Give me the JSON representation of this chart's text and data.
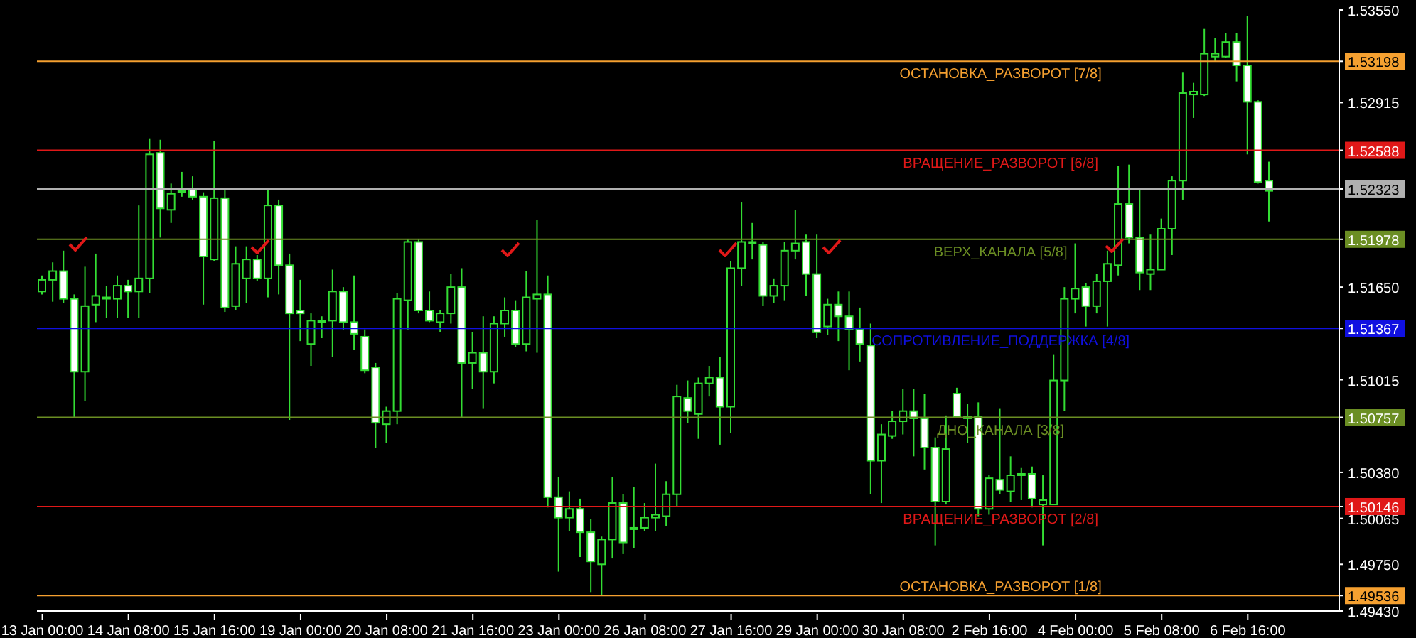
{
  "chart_data": {
    "type": "candlestick",
    "color": "#33dd33",
    "categories": [
      "13 Jan 00:00",
      null,
      null,
      null,
      null,
      null,
      null,
      null,
      "14 Jan 08:00",
      null,
      null,
      null,
      null,
      null,
      null,
      null,
      "15 Jan 16:00",
      null,
      null,
      null,
      null,
      null,
      null,
      null,
      "19 Jan 00:00",
      null,
      null,
      null,
      null,
      null,
      null,
      null,
      "20 Jan 08:00",
      null,
      null,
      null,
      null,
      null,
      null,
      null,
      "21 Jan 16:00",
      null,
      null,
      null,
      null,
      null,
      null,
      null,
      "23 Jan 00:00",
      null,
      null,
      null,
      null,
      null,
      null,
      null,
      "26 Jan 08:00",
      null,
      null,
      null,
      null,
      null,
      null,
      null,
      "27 Jan 16:00",
      null,
      null,
      null,
      null,
      null,
      null,
      null,
      "29 Jan 00:00",
      null,
      null,
      null,
      null,
      null,
      null,
      null,
      "30 Jan 08:00",
      null,
      null,
      null,
      null,
      null,
      null,
      null,
      "2 Feb 16:00",
      null,
      null,
      null,
      null,
      null,
      null,
      null,
      "4 Feb 00:00",
      null,
      null,
      null,
      null,
      null,
      null,
      null,
      "5 Feb 08:00",
      null,
      null,
      null,
      null,
      null,
      null,
      null,
      "6 Feb 16:00",
      null,
      null
    ],
    "ohlc": [
      [
        1.5162,
        1.5173,
        1.516,
        1.517
      ],
      [
        1.517,
        1.5182,
        1.5155,
        1.5176
      ],
      [
        1.5176,
        1.519,
        1.5154,
        1.5157
      ],
      [
        1.5157,
        1.516,
        1.5076,
        1.5107
      ],
      [
        1.5107,
        1.5179,
        1.5087,
        1.5152
      ],
      [
        1.5153,
        1.5188,
        1.5141,
        1.5159
      ],
      [
        1.5158,
        1.5166,
        1.5144,
        1.5158
      ],
      [
        1.5157,
        1.5173,
        1.5144,
        1.5166
      ],
      [
        1.5166,
        1.517,
        1.5144,
        1.5162
      ],
      [
        1.5162,
        1.5221,
        1.5144,
        1.5171
      ],
      [
        1.5171,
        1.5267,
        1.5161,
        1.5256
      ],
      [
        1.5257,
        1.5266,
        1.5199,
        1.5219
      ],
      [
        1.5218,
        1.5236,
        1.5209,
        1.5229
      ],
      [
        1.5231,
        1.5244,
        1.5227,
        1.5231
      ],
      [
        1.5232,
        1.5241,
        1.5225,
        1.5227
      ],
      [
        1.5227,
        1.523,
        1.5153,
        1.5186
      ],
      [
        1.5184,
        1.5265,
        1.5183,
        1.5226
      ],
      [
        1.5226,
        1.5232,
        1.5148,
        1.5151
      ],
      [
        1.5152,
        1.5193,
        1.5149,
        1.5181
      ],
      [
        1.5171,
        1.5193,
        1.5154,
        1.5184
      ],
      [
        1.5184,
        1.5187,
        1.5169,
        1.5171
      ],
      [
        1.5171,
        1.5233,
        1.5158,
        1.5221
      ],
      [
        1.5221,
        1.5225,
        1.516,
        1.518
      ],
      [
        1.518,
        1.5188,
        1.5074,
        1.5147
      ],
      [
        1.5149,
        1.517,
        1.5128,
        1.5147
      ],
      [
        1.5126,
        1.5147,
        1.5111,
        1.5142
      ],
      [
        1.5142,
        1.5145,
        1.513,
        1.5142
      ],
      [
        1.5142,
        1.5177,
        1.5117,
        1.5162
      ],
      [
        1.5162,
        1.5165,
        1.5136,
        1.5141
      ],
      [
        1.5141,
        1.5173,
        1.5122,
        1.5133
      ],
      [
        1.5131,
        1.5136,
        1.5106,
        1.5108
      ],
      [
        1.511,
        1.5113,
        1.5055,
        1.5072
      ],
      [
        1.5071,
        1.5083,
        1.5058,
        1.508
      ],
      [
        1.508,
        1.5161,
        1.5071,
        1.5157
      ],
      [
        1.5156,
        1.5198,
        1.5136,
        1.5196
      ],
      [
        1.5196,
        1.5198,
        1.5147,
        1.5149
      ],
      [
        1.5149,
        1.5162,
        1.5141,
        1.5142
      ],
      [
        1.5141,
        1.5149,
        1.5134,
        1.5147
      ],
      [
        1.5147,
        1.5174,
        1.514,
        1.5165
      ],
      [
        1.5165,
        1.5178,
        1.5075,
        1.5113
      ],
      [
        1.5113,
        1.5134,
        1.5095,
        1.512
      ],
      [
        1.512,
        1.5145,
        1.5082,
        1.5107
      ],
      [
        1.5107,
        1.5145,
        1.5099,
        1.514
      ],
      [
        1.514,
        1.5158,
        1.5131,
        1.5149
      ],
      [
        1.5149,
        1.5156,
        1.5124,
        1.5126
      ],
      [
        1.5126,
        1.5176,
        1.5121,
        1.5158
      ],
      [
        1.5157,
        1.5211,
        1.512,
        1.516
      ],
      [
        1.516,
        1.5173,
        1.5014,
        1.5021
      ],
      [
        1.5021,
        1.5035,
        1.497,
        1.5007
      ],
      [
        1.5007,
        1.5025,
        1.4998,
        1.5013
      ],
      [
        1.5013,
        1.502,
        1.498,
        1.4997
      ],
      [
        1.4997,
        1.5006,
        1.4956,
        1.4977
      ],
      [
        1.4975,
        1.4994,
        1.4954,
        1.4992
      ],
      [
        1.4992,
        1.5035,
        1.4979,
        1.5017
      ],
      [
        1.5017,
        1.5023,
        1.4982,
        1.499
      ],
      [
        1.5,
        1.5028,
        1.4986,
        1.5
      ],
      [
        1.5,
        1.5017,
        1.4998,
        1.5007
      ],
      [
        1.5007,
        1.5044,
        1.4998,
        1.5009
      ],
      [
        1.5008,
        1.5032,
        1.5001,
        1.5023
      ],
      [
        1.5023,
        1.5098,
        1.5015,
        1.509
      ],
      [
        1.5089,
        1.5101,
        1.5072,
        1.508
      ],
      [
        1.5078,
        1.5103,
        1.5061,
        1.5099
      ],
      [
        1.5099,
        1.5111,
        1.509,
        1.5103
      ],
      [
        1.5103,
        1.5117,
        1.5057,
        1.5083
      ],
      [
        1.5083,
        1.5183,
        1.5065,
        1.5178
      ],
      [
        1.5178,
        1.5223,
        1.5166,
        1.5196
      ],
      [
        1.5196,
        1.5209,
        1.5184,
        1.5195
      ],
      [
        1.5194,
        1.5196,
        1.5152,
        1.5159
      ],
      [
        1.5159,
        1.5171,
        1.5154,
        1.5166
      ],
      [
        1.5166,
        1.5196,
        1.5156,
        1.519
      ],
      [
        1.519,
        1.5218,
        1.5184,
        1.5195
      ],
      [
        1.5196,
        1.5201,
        1.5159,
        1.5174
      ],
      [
        1.5174,
        1.5201,
        1.513,
        1.5134
      ],
      [
        1.5138,
        1.5157,
        1.5132,
        1.5153
      ],
      [
        1.5153,
        1.5162,
        1.5128,
        1.5145
      ],
      [
        1.5145,
        1.5162,
        1.5108,
        1.5136
      ],
      [
        1.5136,
        1.5151,
        1.5114,
        1.5126
      ],
      [
        1.5125,
        1.514,
        1.5023,
        1.5046
      ],
      [
        1.5046,
        1.5071,
        1.5017,
        1.5064
      ],
      [
        1.5063,
        1.508,
        1.5061,
        1.5073
      ],
      [
        1.5073,
        1.5095,
        1.5064,
        1.508
      ],
      [
        1.508,
        1.5095,
        1.5049,
        1.5075
      ],
      [
        1.5075,
        1.5092,
        1.504,
        1.5055
      ],
      [
        1.5055,
        1.5062,
        1.4988,
        1.5018
      ],
      [
        1.5018,
        1.5077,
        1.5016,
        1.5054
      ],
      [
        1.5092,
        1.5096,
        1.5075,
        1.5076
      ],
      [
        1.5076,
        1.5085,
        1.5058,
        1.5076
      ],
      [
        1.5076,
        1.5086,
        1.5008,
        1.5013
      ],
      [
        1.5013,
        1.5036,
        1.5009,
        1.5034
      ],
      [
        1.5033,
        1.5082,
        1.5023,
        1.5026
      ],
      [
        1.5025,
        1.5049,
        1.5018,
        1.5036
      ],
      [
        1.5037,
        1.5041,
        1.5019,
        1.5037
      ],
      [
        1.5037,
        1.5042,
        1.5014,
        1.502
      ],
      [
        1.5016,
        1.5036,
        1.4988,
        1.5019
      ],
      [
        1.5016,
        1.5119,
        1.5016,
        1.5101
      ],
      [
        1.5101,
        1.5165,
        1.508,
        1.5157
      ],
      [
        1.5157,
        1.5195,
        1.5147,
        1.5164
      ],
      [
        1.5165,
        1.5168,
        1.5138,
        1.5152
      ],
      [
        1.5152,
        1.5174,
        1.5147,
        1.5169
      ],
      [
        1.5169,
        1.519,
        1.5138,
        1.5181
      ],
      [
        1.518,
        1.5248,
        1.5173,
        1.5222
      ],
      [
        1.5222,
        1.5249,
        1.5195,
        1.5199
      ],
      [
        1.5199,
        1.5232,
        1.5163,
        1.5175
      ],
      [
        1.5174,
        1.5201,
        1.5163,
        1.5177
      ],
      [
        1.5177,
        1.5212,
        1.5177,
        1.5205
      ],
      [
        1.5205,
        1.5241,
        1.5187,
        1.5238
      ],
      [
        1.5238,
        1.5312,
        1.5225,
        1.5298
      ],
      [
        1.5297,
        1.5305,
        1.5281,
        1.5299
      ],
      [
        1.5297,
        1.5342,
        1.5296,
        1.5325
      ],
      [
        1.5323,
        1.5336,
        1.532,
        1.5325
      ],
      [
        1.5323,
        1.5339,
        1.5322,
        1.5333
      ],
      [
        1.5333,
        1.5339,
        1.5306,
        1.5317
      ],
      [
        1.5317,
        1.5351,
        1.5256,
        1.5292
      ],
      [
        1.5292,
        1.5293,
        1.5236,
        1.5237
      ],
      [
        1.5238,
        1.5251,
        1.521,
        1.5231
      ]
    ],
    "ylim": [
      1.4943,
      1.5355
    ],
    "yticks": [
      {
        "value": 1.4943,
        "label": "1.49430"
      },
      {
        "value": 1.4975,
        "label": "1.49750"
      },
      1.50065,
      {
        "value": 1.5038,
        "label": "1.50380"
      },
      1.51015,
      {
        "value": 1.5165,
        "label": "1.51650"
      },
      1.52915,
      {
        "value": 1.5355,
        "label": "1.53550"
      },
      1.53198,
      1.52588,
      1.52323,
      1.51978,
      1.51367,
      1.50757,
      1.50146,
      1.49536
    ],
    "ref_lines": [
      {
        "axis": "y",
        "value": 1.53198,
        "label": "ОСТАНОВКА_РАЗВОРОТ [7/8]",
        "color": "#f5a030"
      },
      {
        "axis": "y",
        "value": 1.52588,
        "label": "ВРАЩЕНИЕ_РАЗВОРОТ [6/8]",
        "color": "#e01818"
      },
      {
        "axis": "y",
        "value": 1.52323,
        "label": null,
        "color": "#b0b0b0"
      },
      {
        "axis": "y",
        "value": 1.51978,
        "label": "ВЕРХ_КАНАЛА [5/8]",
        "color": "#6b8e23"
      },
      {
        "axis": "y",
        "value": 1.51367,
        "label": "СОПРОТИВЛЕНИЕ_ПОДДЕРЖКА [4/8]",
        "color": "#1010e0"
      },
      {
        "axis": "y",
        "value": 1.50757,
        "label": "ДНО_КАНАЛА [3/8]",
        "color": "#6b8e23"
      },
      {
        "axis": "y",
        "value": 1.50146,
        "label": "ВРАЩЕНИЕ_РАЗВОРОТ [2/8]",
        "color": "#e01818"
      },
      {
        "axis": "y",
        "value": 1.49536,
        "label": "ОСТАНОВКА_РАЗВОРОТ [1/8]",
        "color": "#f5a030"
      }
    ]
  }
}
